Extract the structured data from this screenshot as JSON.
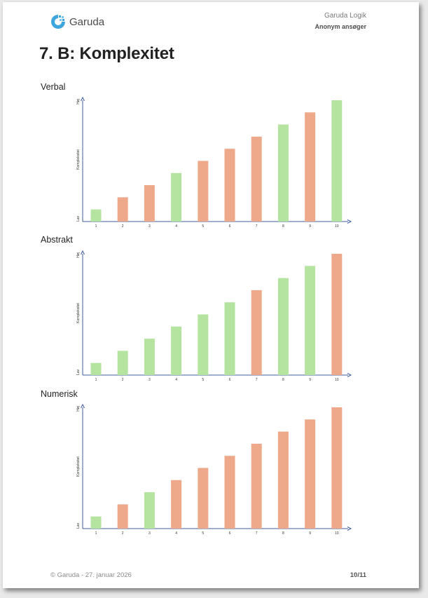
{
  "header": {
    "logo_text": "Garuda",
    "product": "Garuda Logik",
    "applicant": "Anonym ansøger"
  },
  "page_title": "7. B: Komplexitet",
  "colors": {
    "green": "#b5e3a0",
    "orange": "#eda98a",
    "axis": "#3f5c9a",
    "logo": "#3fa6dd"
  },
  "chart_data": [
    {
      "type": "bar",
      "title": "Verbal",
      "ylabel": "Kompleksitet",
      "y_top_label": "Høj",
      "y_bottom_label": "Lav",
      "categories": [
        "1",
        "2",
        "3",
        "4",
        "5",
        "6",
        "7",
        "8",
        "9",
        "10"
      ],
      "values": [
        1,
        2,
        3,
        4,
        5,
        6,
        7,
        8,
        9,
        10
      ],
      "bar_colors": [
        "green",
        "orange",
        "orange",
        "green",
        "orange",
        "orange",
        "orange",
        "green",
        "orange",
        "green"
      ],
      "ylim": [
        0,
        10
      ]
    },
    {
      "type": "bar",
      "title": "Abstrakt",
      "ylabel": "Kompleksitet",
      "y_top_label": "Høj",
      "y_bottom_label": "Lav",
      "categories": [
        "1",
        "2",
        "3",
        "4",
        "5",
        "6",
        "7",
        "8",
        "9",
        "10"
      ],
      "values": [
        1,
        2,
        3,
        4,
        5,
        6,
        7,
        8,
        9,
        10
      ],
      "bar_colors": [
        "green",
        "green",
        "green",
        "green",
        "green",
        "green",
        "orange",
        "green",
        "green",
        "orange"
      ],
      "ylim": [
        0,
        10
      ]
    },
    {
      "type": "bar",
      "title": "Numerisk",
      "ylabel": "Kompleksitet",
      "y_top_label": "Høj",
      "y_bottom_label": "Lav",
      "categories": [
        "1",
        "2",
        "3",
        "4",
        "5",
        "6",
        "7",
        "8",
        "9",
        "10"
      ],
      "values": [
        1,
        2,
        3,
        4,
        5,
        6,
        7,
        8,
        9,
        10
      ],
      "bar_colors": [
        "green",
        "orange",
        "green",
        "orange",
        "orange",
        "orange",
        "orange",
        "orange",
        "orange",
        "orange"
      ],
      "ylim": [
        0,
        10
      ]
    }
  ],
  "footer": {
    "copyright": "© Garuda - 27. januar 2026",
    "page_number": "10/11"
  }
}
